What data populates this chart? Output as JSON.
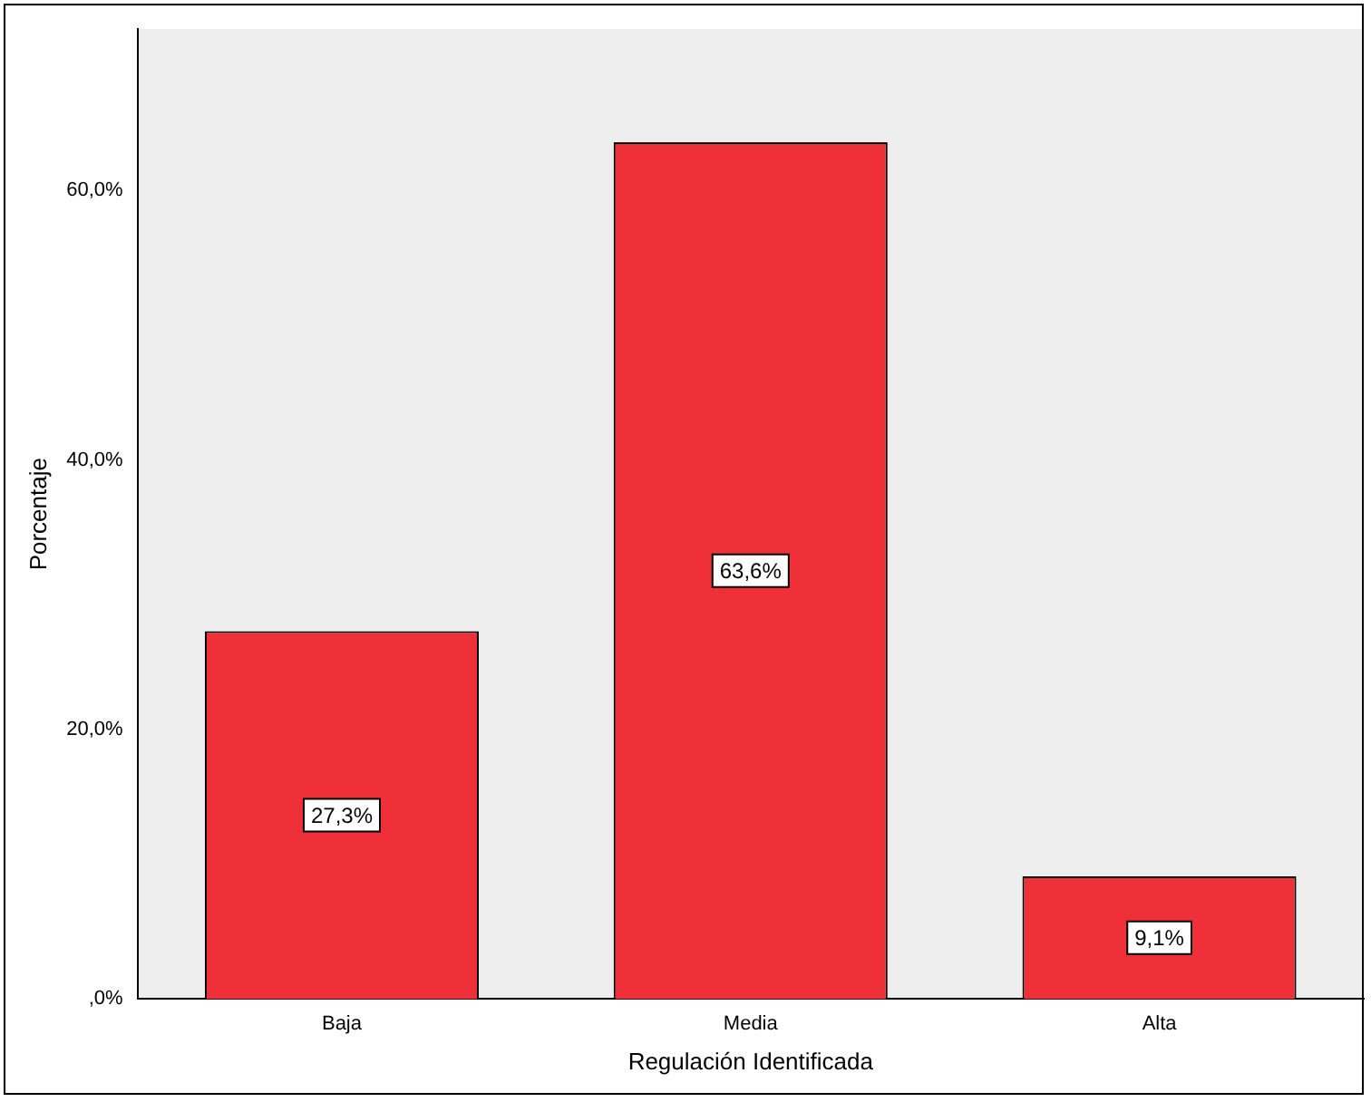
{
  "chart_data": {
    "type": "bar",
    "xlabel": "Regulación Identificada",
    "ylabel": "Porcentaje",
    "categories": [
      "Baja",
      "Media",
      "Alta"
    ],
    "values": [
      27.3,
      63.6,
      9.1
    ],
    "value_labels": [
      "27,3%",
      "63,6%",
      "9,1%"
    ],
    "color": "#ef3038",
    "ylim": [
      0,
      72
    ],
    "yticks": [
      {
        "value": 0,
        "label": ",0%"
      },
      {
        "value": 20,
        "label": "20,0%"
      },
      {
        "value": 40,
        "label": "40,0%"
      },
      {
        "value": 60,
        "label": "60,0%"
      }
    ],
    "grid": false,
    "legend": false
  }
}
